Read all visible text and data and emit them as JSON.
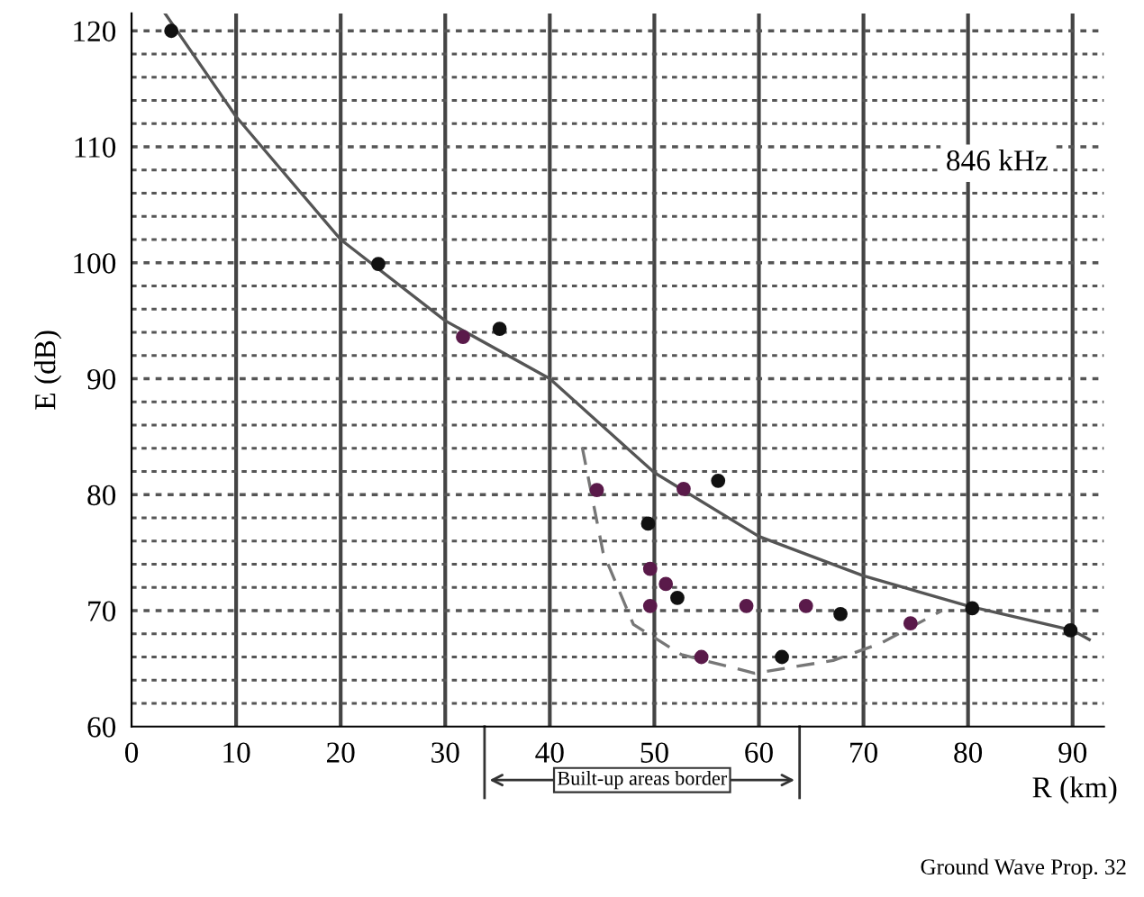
{
  "chart_data": {
    "type": "scatter",
    "xlabel": "R (km)",
    "ylabel": "E (dB)",
    "xlim": [
      0,
      93
    ],
    "ylim": [
      60,
      121.5
    ],
    "xticks": [
      0,
      10,
      20,
      30,
      40,
      50,
      60,
      70,
      80,
      90
    ],
    "yticks": [
      60,
      {
        "value": 62,
        "label": null
      },
      {
        "value": 64,
        "label": null
      },
      {
        "value": 66,
        "label": null
      },
      {
        "value": 68,
        "label": null
      },
      70,
      {
        "value": 72,
        "label": null
      },
      {
        "value": 74,
        "label": null
      },
      {
        "value": 76,
        "label": null
      },
      {
        "value": 78,
        "label": null
      },
      80,
      {
        "value": 82,
        "label": null
      },
      {
        "value": 84,
        "label": null
      },
      {
        "value": 86,
        "label": null
      },
      {
        "value": 88,
        "label": null
      },
      90,
      {
        "value": 92,
        "label": null
      },
      {
        "value": 94,
        "label": null
      },
      {
        "value": 96,
        "label": null
      },
      {
        "value": 98,
        "label": null
      },
      100,
      {
        "value": 102,
        "label": null
      },
      {
        "value": 104,
        "label": null
      },
      {
        "value": 106,
        "label": null
      },
      {
        "value": 108,
        "label": null
      },
      110,
      {
        "value": 112,
        "label": null
      },
      {
        "value": 114,
        "label": null
      },
      {
        "value": 116,
        "label": null
      },
      {
        "value": 118,
        "label": null
      },
      120
    ],
    "grid": true,
    "series": [
      {
        "color": "#5a1a4a",
        "marker": "circle",
        "x": [
          31.7,
          44.5,
          52.8,
          49.6,
          51.1,
          49.6,
          58.8,
          64.5,
          54.5,
          74.5
        ],
        "values": [
          93.6,
          80.4,
          80.5,
          73.6,
          72.3,
          70.4,
          70.4,
          70.4,
          66.0,
          68.9
        ]
      },
      {
        "color": "#111111",
        "marker": "circle",
        "x": [
          3.8,
          23.6,
          35.2,
          56.1,
          49.4,
          52.2,
          67.8,
          62.2,
          80.4,
          89.8
        ],
        "values": [
          120.0,
          99.9,
          94.3,
          81.2,
          77.5,
          71.1,
          69.7,
          66.0,
          70.2,
          68.3
        ]
      },
      {
        "type": "line",
        "color": "#555555",
        "line_style": "solid",
        "x": [
          3.2,
          10,
          20,
          30,
          40,
          50,
          60,
          70,
          80,
          90,
          91.6
        ],
        "values": [
          121.5,
          112.6,
          102,
          95,
          90,
          81.9,
          76.4,
          73.0,
          70.4,
          68.3,
          67.5
        ]
      },
      {
        "type": "line",
        "color": "#777777",
        "line_style": "dashed",
        "x": [
          43.1,
          45.1,
          48,
          52.6,
          59.6,
          67.1,
          71.7,
          77.5
        ],
        "values": [
          84.1,
          75,
          68.8,
          66.2,
          64.6,
          65.7,
          67.2,
          70.0
        ]
      }
    ],
    "annotations": [
      "846 kHz",
      "Ground Wave Prop. 32",
      "Built-up areas border"
    ]
  }
}
